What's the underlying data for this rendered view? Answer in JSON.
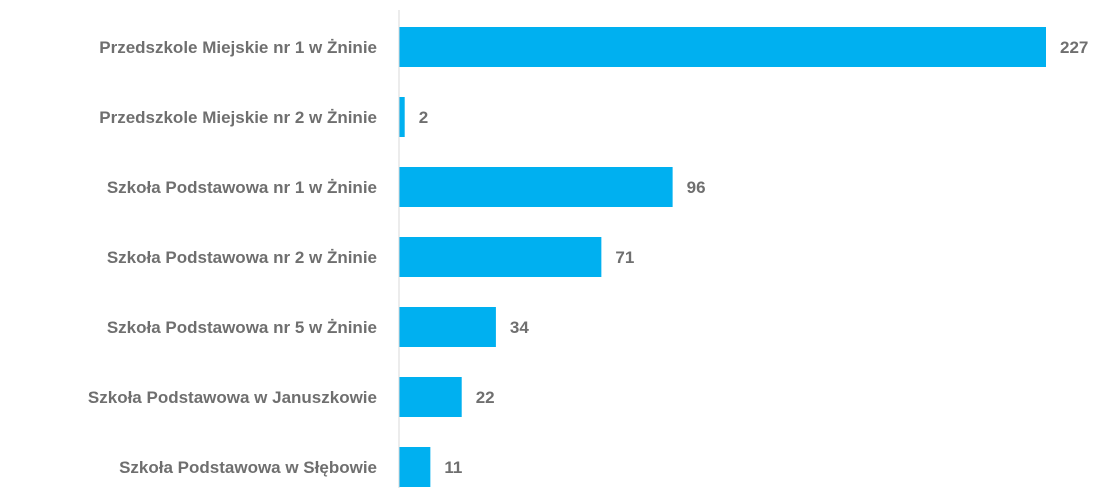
{
  "chart_data": {
    "type": "bar",
    "orientation": "horizontal",
    "categories": [
      "Przedszkole Miejskie nr 1 w Żninie",
      "Przedszkole Miejskie nr 2 w Żninie",
      "Szkoła Podstawowa nr 1 w Żninie",
      "Szkoła Podstawowa nr 2 w Żninie",
      "Szkoła Podstawowa nr 5 w Żninie",
      "Szkoła Podstawowa w Januszkowie",
      "Szkoła Podstawowa w Słębowie"
    ],
    "values": [
      227,
      2,
      96,
      71,
      34,
      22,
      11
    ],
    "title": "",
    "xlabel": "",
    "ylabel": "",
    "xlim": [
      0,
      227
    ],
    "grid": false,
    "legend": "none",
    "data_labels": true,
    "bar_color": "#00b0f0",
    "label_color": "#6f6f6f",
    "axis_color": "#d9d9d9"
  }
}
